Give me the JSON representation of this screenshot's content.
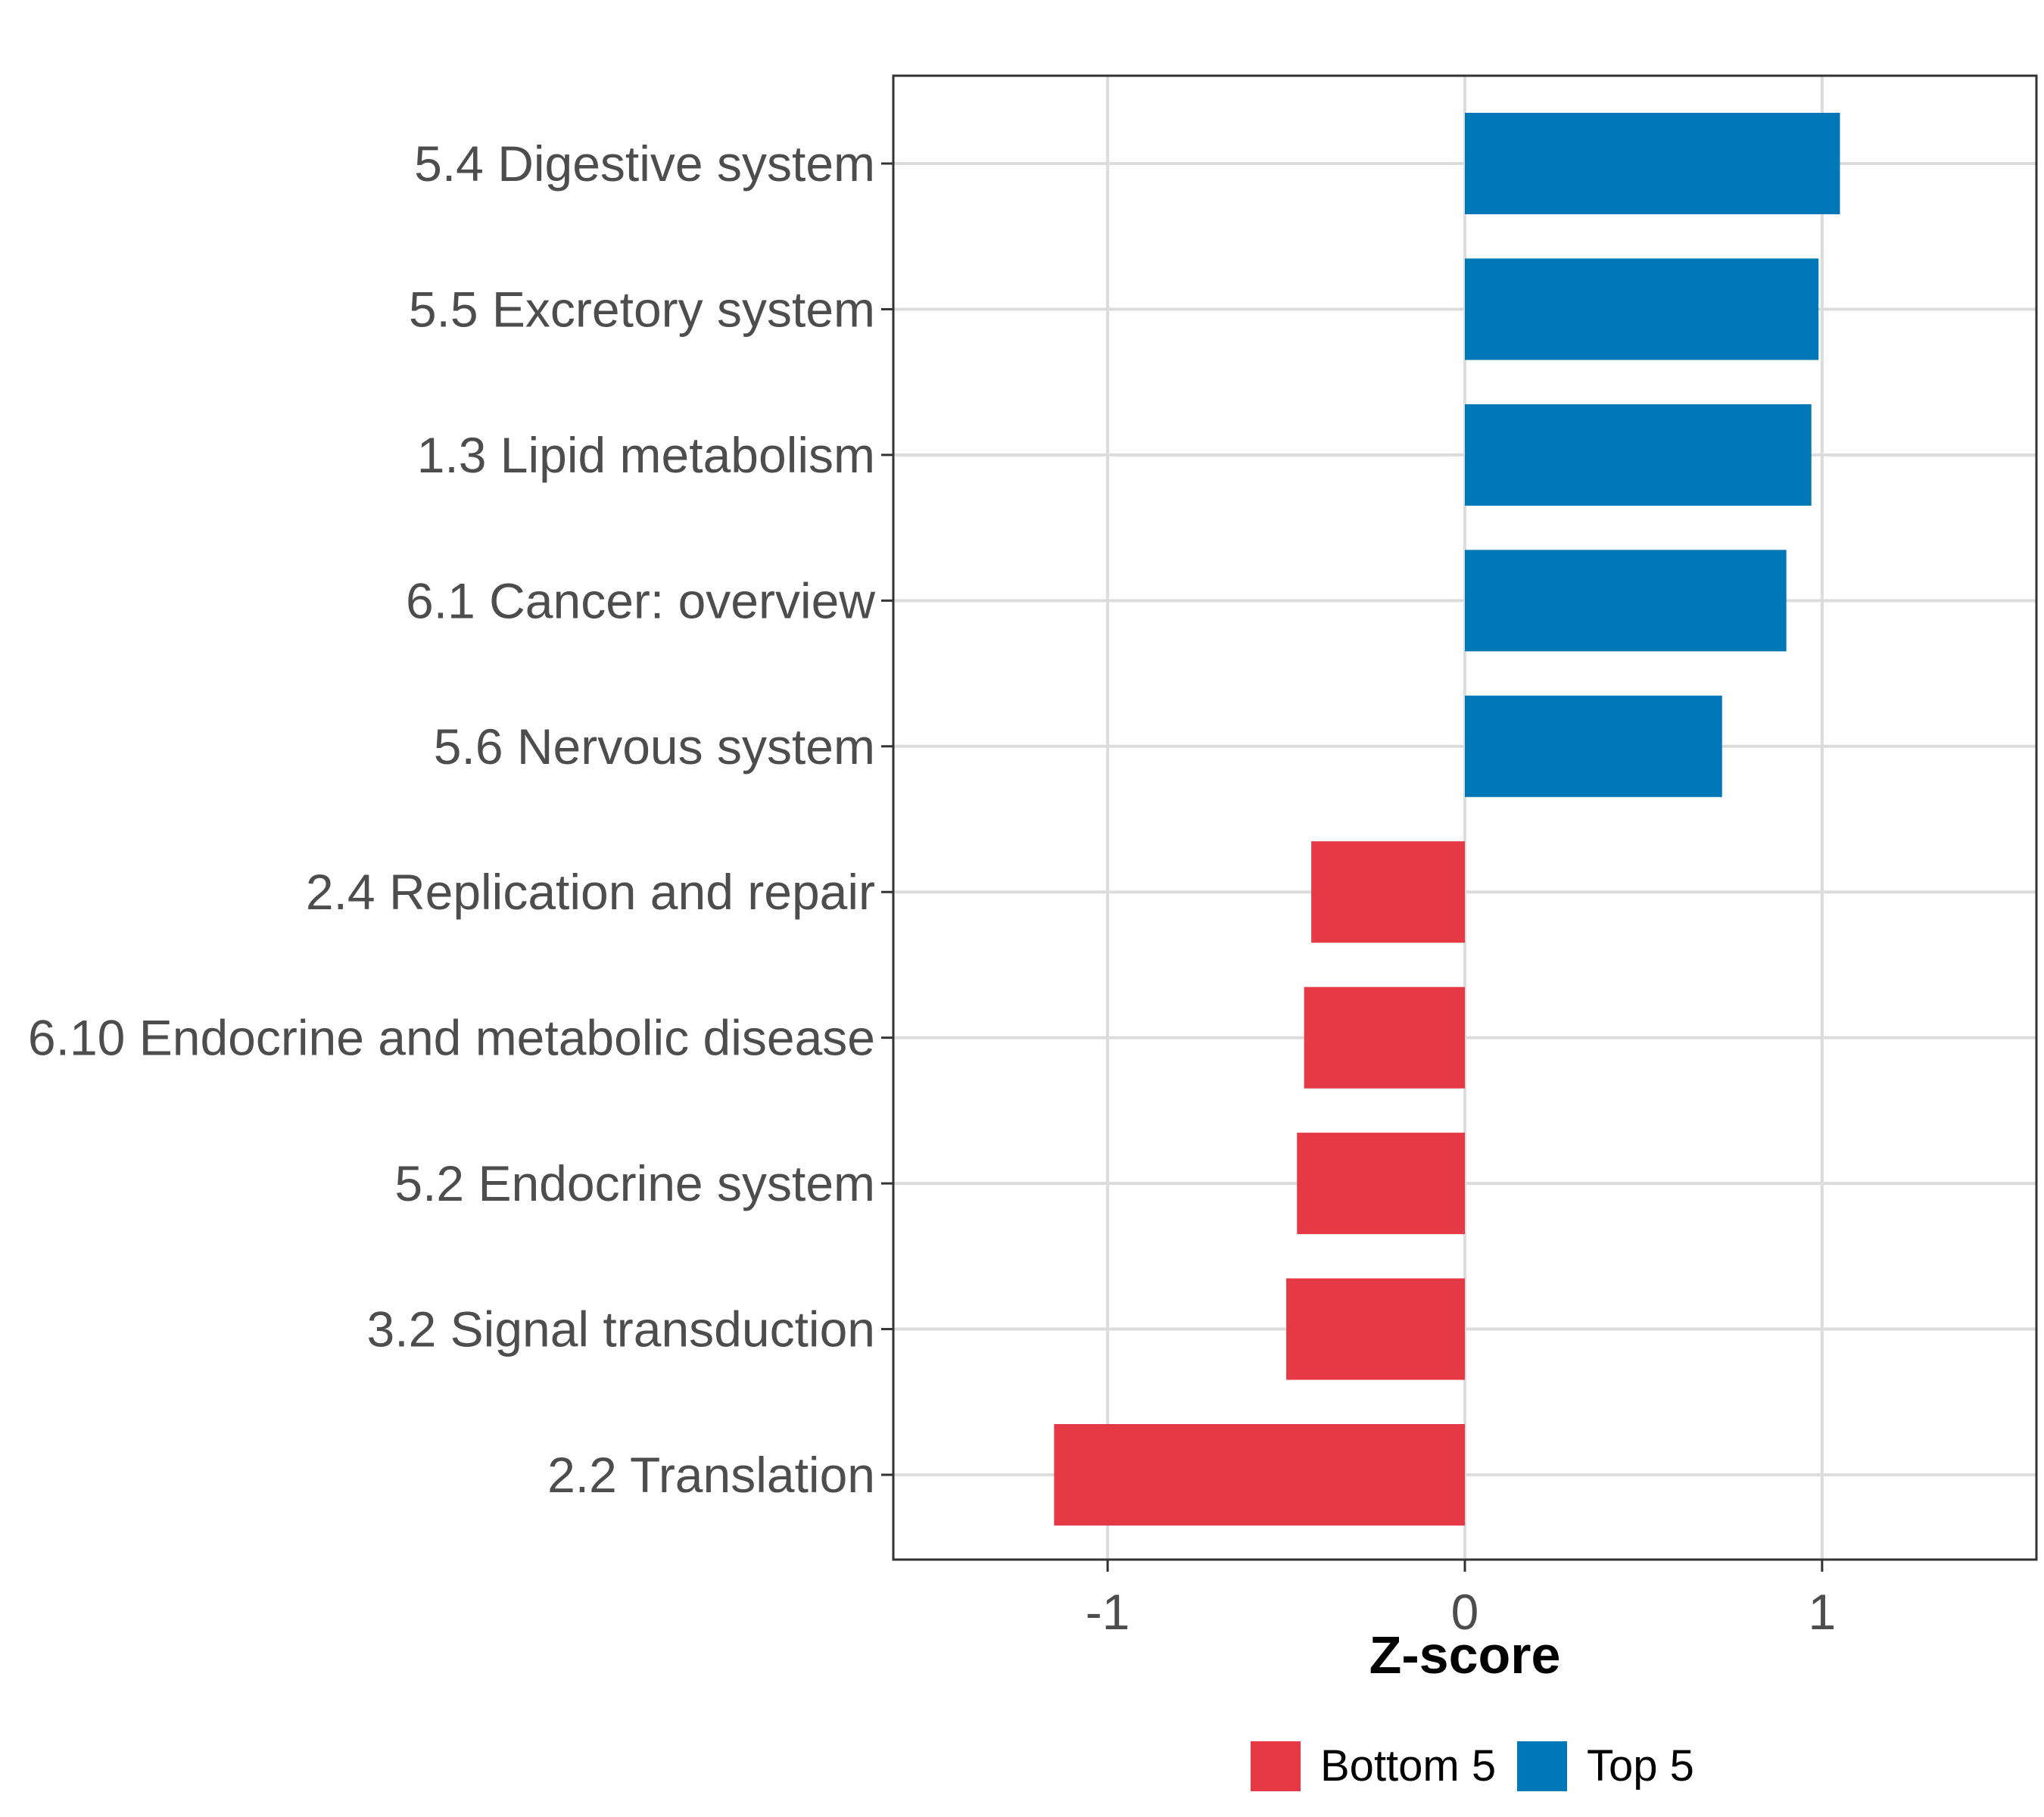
{
  "chart_data": {
    "type": "bar",
    "orientation": "horizontal",
    "title": "",
    "xlabel": "Z-score",
    "ylabel": "",
    "xlim": [
      -1.6,
      1.6
    ],
    "x_ticks": [
      -1,
      0,
      1
    ],
    "x_tick_labels": [
      "-1",
      "0",
      "1"
    ],
    "grid": true,
    "categories": [
      "5.4 Digestive system",
      "5.5 Excretory system",
      "1.3 Lipid metabolism",
      "6.1 Cancer: overview",
      "5.6 Nervous system",
      "2.4 Replication and repair",
      "6.10 Endocrine and metabolic disease",
      "5.2 Endocrine system",
      "3.2 Signal transduction",
      "2.2 Translation"
    ],
    "values": [
      1.05,
      0.99,
      0.97,
      0.9,
      0.72,
      -0.43,
      -0.45,
      -0.47,
      -0.5,
      -1.15
    ],
    "groups": [
      "Top 5",
      "Top 5",
      "Top 5",
      "Top 5",
      "Top 5",
      "Bottom 5",
      "Bottom 5",
      "Bottom 5",
      "Bottom 5",
      "Bottom 5"
    ],
    "legend": {
      "placement": "bottom",
      "entries": [
        {
          "name": "Bottom 5",
          "color": "#E63946"
        },
        {
          "name": "Top 5",
          "color": "#0077B6"
        }
      ]
    }
  }
}
